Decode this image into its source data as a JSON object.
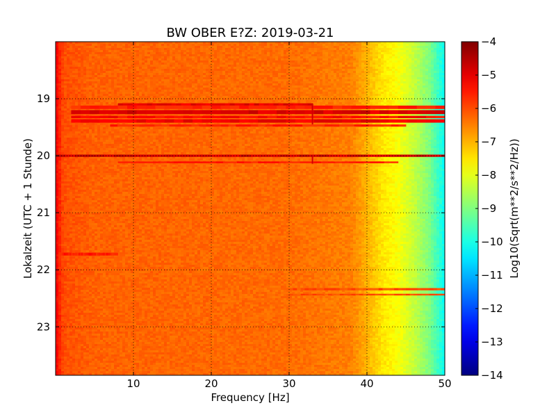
{
  "chart_data": {
    "type": "heatmap",
    "title": "BW OBER E?Z: 2019-03-21",
    "xlabel": "Frequency [Hz]",
    "ylabel": "Lokalzeit (UTC + 1 Stunde)",
    "xlim": [
      0,
      50
    ],
    "ylim": [
      23.85,
      18.0
    ],
    "x_ticks": [
      10,
      20,
      30,
      40,
      50
    ],
    "y_ticks": [
      19,
      20,
      21,
      22,
      23
    ],
    "grid": true,
    "colorbar": {
      "label": "Log10(Sqrt(m**2/s**2/Hz))",
      "range": [
        -14,
        -4
      ],
      "ticks": [
        -4,
        -5,
        -6,
        -7,
        -8,
        -9,
        -10,
        -11,
        -12,
        -13,
        -14
      ],
      "colormap": "jet"
    },
    "background_level": -6.3,
    "frequency_profile": [
      {
        "f": 0,
        "v": -5.2
      },
      {
        "f": 1,
        "v": -6.0
      },
      {
        "f": 5,
        "v": -6.2
      },
      {
        "f": 30,
        "v": -6.3
      },
      {
        "f": 38,
        "v": -6.5
      },
      {
        "f": 40,
        "v": -7.0
      },
      {
        "f": 42,
        "v": -7.5
      },
      {
        "f": 44,
        "v": -7.8
      },
      {
        "f": 46,
        "v": -8.3
      },
      {
        "f": 48,
        "v": -9.0
      },
      {
        "f": 50,
        "v": -10.2
      }
    ],
    "bands": [
      {
        "t0": 19.08,
        "t1": 19.12,
        "f0": 8,
        "f1": 33,
        "v": -5.0
      },
      {
        "t0": 19.12,
        "t1": 19.18,
        "f0": 2,
        "f1": 50,
        "v": -5.6
      },
      {
        "t0": 19.2,
        "t1": 19.27,
        "f0": 2,
        "f1": 50,
        "v": -4.9
      },
      {
        "t0": 19.3,
        "t1": 19.34,
        "f0": 2,
        "f1": 50,
        "v": -5.3
      },
      {
        "t0": 19.36,
        "t1": 19.42,
        "f0": 2,
        "f1": 50,
        "v": -5.1
      },
      {
        "t0": 19.45,
        "t1": 19.49,
        "f0": 7,
        "f1": 45,
        "v": -5.6
      },
      {
        "t0": 19.98,
        "t1": 20.02,
        "f0": 0,
        "f1": 50,
        "v": -4.8
      },
      {
        "t0": 20.1,
        "t1": 20.13,
        "f0": 8,
        "f1": 44,
        "v": -5.5
      },
      {
        "t0": 21.7,
        "t1": 21.75,
        "f0": 0.5,
        "f1": 8,
        "v": -5.5
      },
      {
        "t0": 22.32,
        "t1": 22.36,
        "f0": 30,
        "f1": 50,
        "v": -6.0
      },
      {
        "t0": 22.42,
        "t1": 22.45,
        "f0": 30,
        "f1": 50,
        "v": -6.0
      }
    ],
    "spikes": [
      {
        "f": 33,
        "t0": 19.08,
        "t1": 19.45,
        "v": -4.8
      },
      {
        "f": 33,
        "t0": 20.0,
        "t1": 20.14,
        "v": -4.8
      }
    ]
  }
}
